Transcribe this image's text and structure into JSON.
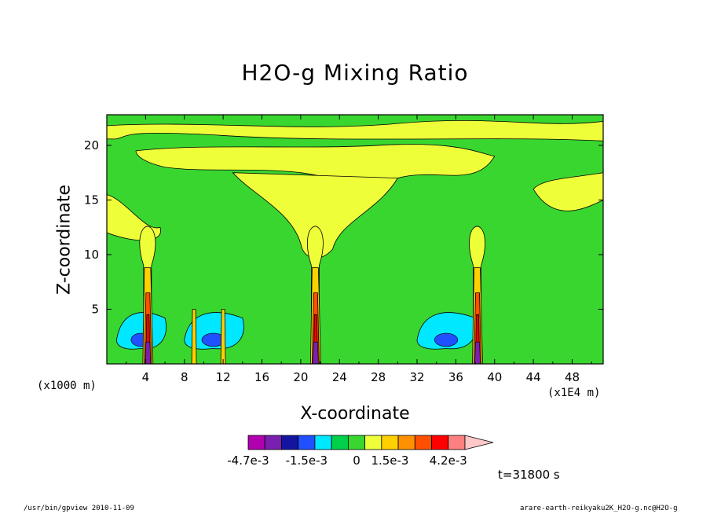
{
  "chart_data": {
    "type": "heatmap",
    "title": "H2O-g Mixing Ratio",
    "xlabel": "X-coordinate",
    "ylabel": "Z-coordinate",
    "x_unit_left": "(x1000 m)",
    "x_unit_right": "(x1E4 m)",
    "x_ticks": [
      4,
      8,
      12,
      16,
      20,
      24,
      28,
      32,
      36,
      40,
      44,
      48
    ],
    "y_ticks": [
      5,
      10,
      15,
      20
    ],
    "xlim": [
      0,
      51.2
    ],
    "ylim": [
      0,
      22.8
    ],
    "grid": false,
    "colorbar": {
      "labels": [
        "-4.7e-3",
        "-1.5e-3",
        "0",
        "1.5e-3",
        "4.2e-3"
      ],
      "colors": [
        "#b000b0",
        "#7a1fb0",
        "#1414a0",
        "#2050ff",
        "#00e8ff",
        "#00d04a",
        "#3ad630",
        "#eeff3a",
        "#ffd000",
        "#ff9000",
        "#ff5000",
        "#ff0000",
        "#ff8080",
        "#ffc8c8"
      ],
      "placement": "bottom"
    },
    "background_level_color": "#3ad630",
    "plumes_x": [
      4.2,
      21.5,
      38.2
    ],
    "secondary_plumes_x": [
      9.0,
      12.0
    ],
    "cyan_regions_x": [
      [
        1,
        6
      ],
      [
        8,
        14
      ],
      [
        32,
        38
      ]
    ]
  },
  "time_label": "t=31800 s",
  "footer": {
    "left": "/usr/bin/gpview  2010-11-09",
    "right": "arare-earth-reikyaku2K_H2O-g.nc@H2O-g"
  }
}
